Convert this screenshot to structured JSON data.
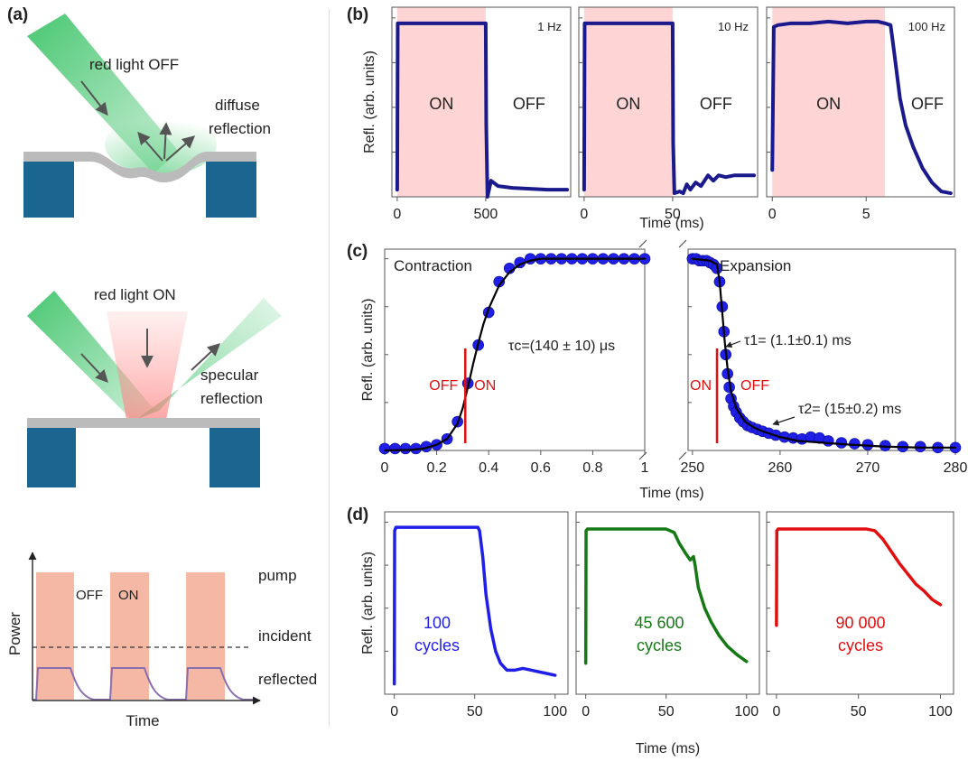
{
  "panel_labels": {
    "a": "(a)",
    "b": "(b)",
    "c": "(c)",
    "d": "(d)"
  },
  "schematic": {
    "top_beam_label": "red light OFF",
    "top_reflection_label_1": "diffuse",
    "top_reflection_label_2": "reflection",
    "mid_beam_label": "red light ON",
    "mid_reflection_label_1": "specular",
    "mid_reflection_label_2": "reflection"
  },
  "timing_diagram": {
    "ylabel": "Power",
    "xlabel": "Time",
    "off_label": "OFF",
    "on_label": "ON",
    "pump_label": "pump",
    "incident_label": "incident",
    "reflected_label": "reflected"
  },
  "colors": {
    "navy": "#1a1a8c",
    "blue": "#1f1fe8",
    "green": "#157a15",
    "red": "#e01010",
    "pink": "#ffd4d4",
    "salmon": "#f5b8a4",
    "steel_blue": "#1a6690",
    "grey": "#bbbbbb",
    "fit": "#000000",
    "marker": "#e01010",
    "purple": "#8a6fb0"
  },
  "chart_data": [
    {
      "id": "b1",
      "type": "line",
      "annotation": "1 Hz",
      "on_label": "ON",
      "off_label": "OFF",
      "xlim": [
        -30,
        980
      ],
      "ylim": [
        0,
        1.06
      ],
      "xticks": [
        0,
        500
      ],
      "yticks": [
        0.0,
        0.25,
        0.5,
        0.75,
        1.0
      ],
      "ylabel": "Refl. (arb. units)",
      "xlabel": "",
      "shaded_on": [
        0,
        500
      ],
      "series": [
        {
          "color": "navy",
          "x": [
            0,
            3,
            8,
            500,
            503,
            510,
            530,
            570,
            650,
            750,
            850,
            960
          ],
          "y": [
            0.04,
            0.97,
            0.97,
            0.97,
            0.4,
            0.0,
            0.09,
            0.06,
            0.05,
            0.045,
            0.04,
            0.04
          ]
        }
      ]
    },
    {
      "id": "b2",
      "type": "line",
      "annotation": "10 Hz",
      "on_label": "ON",
      "off_label": "OFF",
      "xlim": [
        -3,
        98
      ],
      "ylim": [
        0,
        1.06
      ],
      "xticks": [
        0,
        50
      ],
      "yticks": [
        0.0,
        0.25,
        0.5,
        0.75,
        1.0
      ],
      "ylabel": "",
      "xlabel": "",
      "shaded_on": [
        0,
        50
      ],
      "series": [
        {
          "color": "navy",
          "x": [
            0,
            0.3,
            1,
            50,
            50.3,
            51,
            54,
            56,
            58,
            60,
            63,
            66,
            70,
            73,
            76,
            80,
            85,
            90,
            96
          ],
          "y": [
            0.04,
            0.97,
            0.97,
            0.97,
            0.3,
            0.02,
            0.03,
            0.02,
            0.07,
            0.04,
            0.08,
            0.06,
            0.12,
            0.09,
            0.12,
            0.11,
            0.12,
            0.12,
            0.12
          ]
        }
      ]
    },
    {
      "id": "b3",
      "type": "line",
      "annotation": "100 Hz",
      "on_label": "ON",
      "off_label": "OFF",
      "xlim": [
        -0.3,
        9.7
      ],
      "ylim": [
        0,
        1.06
      ],
      "xticks": [
        0,
        5
      ],
      "yticks": [
        0.0,
        0.25,
        0.5,
        0.75,
        1.0
      ],
      "ylabel": "",
      "xlabel": "Time (ms)",
      "shaded_on": [
        0,
        6
      ],
      "series": [
        {
          "color": "navy",
          "x": [
            0,
            0.08,
            0.3,
            1,
            2,
            3,
            4,
            5,
            5.6,
            6,
            6.3,
            6.5,
            6.8,
            7.1,
            7.5,
            8,
            8.5,
            9,
            9.5
          ],
          "y": [
            0.15,
            0.95,
            0.96,
            0.97,
            0.97,
            0.98,
            0.97,
            0.98,
            0.98,
            0.97,
            0.96,
            0.8,
            0.55,
            0.4,
            0.28,
            0.16,
            0.08,
            0.03,
            0.02
          ]
        }
      ]
    },
    {
      "id": "c-left",
      "type": "scatter",
      "title": "Contraction",
      "xlabel": "",
      "ylabel": "Refl. (arb. units)",
      "xlim": [
        0,
        1
      ],
      "ylim": [
        0,
        1.05
      ],
      "xticks": [
        0,
        0.2,
        0.4,
        0.6,
        0.8,
        1
      ],
      "yticks": [
        0.0,
        0.25,
        0.5,
        0.75,
        1.0
      ],
      "annotation": "τc=(140 ± 10) μs",
      "on_label": "ON",
      "off_label": "OFF",
      "switch_x": 0.31,
      "series": [
        {
          "name": "",
          "color": "blue",
          "marker": "circle",
          "x": [
            0,
            0.04,
            0.08,
            0.12,
            0.16,
            0.2,
            0.24,
            0.28,
            0.32,
            0.36,
            0.4,
            0.44,
            0.48,
            0.52,
            0.56,
            0.6,
            0.64,
            0.68,
            0.72,
            0.76,
            0.8,
            0.84,
            0.88,
            0.92,
            0.96,
            1.0
          ],
          "y": [
            0.01,
            0.01,
            0.01,
            0.01,
            0.02,
            0.03,
            0.06,
            0.15,
            0.35,
            0.55,
            0.72,
            0.88,
            0.95,
            0.98,
            1.0,
            1.0,
            1.0,
            1.0,
            1.0,
            1.0,
            1.0,
            1.0,
            1.0,
            1.0,
            1.0,
            1.0
          ]
        },
        {
          "name": "",
          "color": "fit",
          "marker": "none",
          "x": [
            0,
            0.1,
            0.15,
            0.2,
            0.24,
            0.28,
            0.3,
            0.32,
            0.34,
            0.36,
            0.38,
            0.4,
            0.44,
            0.48,
            0.52,
            0.56,
            0.6,
            0.8,
            1.0
          ],
          "y": [
            0.0,
            0.003,
            0.01,
            0.03,
            0.06,
            0.14,
            0.22,
            0.33,
            0.45,
            0.56,
            0.66,
            0.74,
            0.86,
            0.93,
            0.97,
            0.99,
            1.0,
            1.0,
            1.0
          ]
        }
      ]
    },
    {
      "id": "c-right",
      "type": "scatter",
      "title": "Expansion",
      "xlabel": "",
      "ylabel": "",
      "xlim": [
        249.5,
        280
      ],
      "ylim": [
        0,
        1.05
      ],
      "xticks": [
        250,
        260,
        270,
        280
      ],
      "yticks": [
        0.0,
        0.25,
        0.5,
        0.75,
        1.0
      ],
      "annotation_1": "τ1= (1.1±0.1) ms",
      "annotation_2": "τ2= (15±0.2) ms",
      "on_label": "ON",
      "off_label": "OFF",
      "switch_x": 252.8,
      "series": [
        {
          "name": "",
          "color": "blue",
          "marker": "circle",
          "x": [
            250,
            250.4,
            250.8,
            251.2,
            251.6,
            252,
            252.4,
            252.8,
            253.1,
            253.4,
            253.6,
            253.8,
            254,
            254.2,
            254.4,
            254.7,
            255,
            255.4,
            255.8,
            256.3,
            256.8,
            257.4,
            258,
            258.7,
            259.5,
            260.5,
            261.5,
            262.5,
            263.5,
            264.5,
            265.5,
            267,
            268.5,
            270,
            272,
            274,
            276,
            278,
            280
          ],
          "y": [
            1.0,
            1.0,
            0.99,
            0.99,
            0.99,
            0.98,
            0.97,
            0.95,
            0.88,
            0.75,
            0.62,
            0.5,
            0.4,
            0.33,
            0.27,
            0.23,
            0.2,
            0.17,
            0.15,
            0.13,
            0.12,
            0.11,
            0.1,
            0.09,
            0.08,
            0.07,
            0.065,
            0.06,
            0.07,
            0.065,
            0.05,
            0.04,
            0.035,
            0.03,
            0.025,
            0.02,
            0.02,
            0.015,
            0.015
          ]
        },
        {
          "name": "",
          "color": "fit",
          "marker": "none",
          "x": [
            250,
            252,
            252.8,
            253.1,
            253.4,
            253.7,
            254,
            254.4,
            255,
            256,
            257,
            258,
            260,
            262,
            265,
            268,
            272,
            276,
            280
          ],
          "y": [
            1.0,
            0.99,
            0.97,
            0.88,
            0.72,
            0.56,
            0.43,
            0.31,
            0.22,
            0.15,
            0.12,
            0.1,
            0.07,
            0.05,
            0.04,
            0.03,
            0.02,
            0.015,
            0.015
          ]
        }
      ]
    },
    {
      "id": "d1",
      "type": "line",
      "label_1": "100",
      "label_2": "cycles",
      "xlim": [
        -6,
        108
      ],
      "ylim": [
        0,
        1.06
      ],
      "xticks": [
        0,
        50,
        100
      ],
      "yticks": [
        0.0,
        0.25,
        0.5,
        0.75,
        1.0
      ],
      "ylabel": "Refl. (arb. units)",
      "xlabel": "",
      "series": [
        {
          "color": "blue",
          "x": [
            0,
            0.2,
            1,
            20,
            40,
            52,
            53,
            55,
            57,
            60,
            63,
            66,
            70,
            75,
            80,
            85,
            90,
            95,
            100
          ],
          "y": [
            0.06,
            0.95,
            0.97,
            0.97,
            0.97,
            0.97,
            0.95,
            0.8,
            0.58,
            0.38,
            0.25,
            0.18,
            0.14,
            0.14,
            0.15,
            0.14,
            0.13,
            0.12,
            0.11
          ]
        }
      ]
    },
    {
      "id": "d2",
      "type": "line",
      "label_1": "45 600",
      "label_2": "cycles",
      "xlim": [
        -6,
        108
      ],
      "ylim": [
        0,
        1.06
      ],
      "xticks": [
        0,
        50,
        100
      ],
      "yticks": [
        0.0,
        0.25,
        0.5,
        0.75,
        1.0
      ],
      "ylabel": "",
      "xlabel": "Time (ms)",
      "series": [
        {
          "color": "green",
          "x": [
            0,
            0.2,
            1,
            20,
            40,
            50,
            55,
            58,
            62,
            65,
            67,
            68,
            70,
            74,
            78,
            83,
            88,
            94,
            100
          ],
          "y": [
            0.18,
            0.95,
            0.96,
            0.96,
            0.96,
            0.96,
            0.94,
            0.88,
            0.82,
            0.78,
            0.8,
            0.75,
            0.62,
            0.5,
            0.42,
            0.34,
            0.28,
            0.23,
            0.19
          ]
        }
      ]
    },
    {
      "id": "d3",
      "type": "line",
      "label_1": "90 000",
      "label_2": "cycles",
      "xlim": [
        -6,
        108
      ],
      "ylim": [
        0,
        1.06
      ],
      "xticks": [
        0,
        50,
        100
      ],
      "yticks": [
        0.0,
        0.25,
        0.5,
        0.75,
        1.0
      ],
      "ylabel": "",
      "xlabel": "",
      "series": [
        {
          "color": "red",
          "x": [
            0,
            0.2,
            1,
            20,
            40,
            55,
            60,
            65,
            70,
            75,
            80,
            85,
            90,
            95,
            100
          ],
          "y": [
            0.4,
            0.95,
            0.96,
            0.96,
            0.96,
            0.96,
            0.95,
            0.9,
            0.83,
            0.76,
            0.7,
            0.64,
            0.6,
            0.55,
            0.52
          ]
        }
      ]
    }
  ]
}
